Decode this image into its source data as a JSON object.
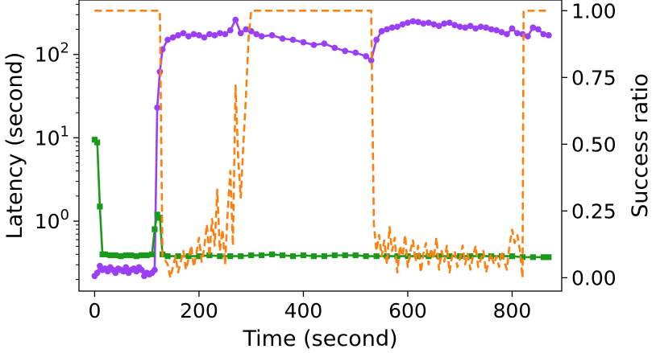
{
  "chart_data": {
    "type": "line",
    "xlabel": "Time (second)",
    "ylabel_left": "Latency (second)",
    "ylabel_right": "Success ratio",
    "xlim": [
      -30,
      895
    ],
    "ylim_left": [
      0.145,
      450
    ],
    "ylim_right": [
      -0.05,
      1.04
    ],
    "left_scale": "log",
    "x_ticks": [
      {
        "value": 0,
        "label": "0"
      },
      {
        "value": 200,
        "label": "200"
      },
      {
        "value": 400,
        "label": "400"
      },
      {
        "value": 600,
        "label": "600"
      },
      {
        "value": 800,
        "label": "800"
      }
    ],
    "left_ticks": [
      {
        "value": 1,
        "base": "10",
        "exp": "0"
      },
      {
        "value": 10,
        "base": "10",
        "exp": "1"
      },
      {
        "value": 100,
        "base": "10",
        "exp": "2"
      }
    ],
    "right_ticks": [
      {
        "value": 0.0,
        "label": "0.00"
      },
      {
        "value": 0.25,
        "label": "0.25"
      },
      {
        "value": 0.5,
        "label": "0.50"
      },
      {
        "value": 0.75,
        "label": "0.75"
      },
      {
        "value": 1.0,
        "label": "1.00"
      }
    ],
    "legend": "none",
    "grid": false,
    "series": [
      {
        "color": "#9b3ff5",
        "marker": "circle",
        "axis": "left",
        "x": [
          0,
          5,
          10,
          15,
          20,
          25,
          30,
          35,
          40,
          45,
          50,
          55,
          60,
          65,
          70,
          75,
          80,
          85,
          90,
          95,
          100,
          105,
          110,
          115,
          120,
          125,
          130,
          140,
          150,
          160,
          170,
          180,
          190,
          200,
          210,
          220,
          230,
          240,
          250,
          260,
          270,
          280,
          290,
          300,
          310,
          320,
          340,
          360,
          380,
          400,
          420,
          440,
          460,
          480,
          500,
          520,
          530,
          540,
          550,
          560,
          570,
          580,
          590,
          600,
          610,
          620,
          630,
          640,
          650,
          660,
          670,
          680,
          690,
          700,
          710,
          720,
          730,
          740,
          750,
          760,
          770,
          780,
          790,
          800,
          810,
          820,
          830,
          840,
          850,
          860,
          870
        ],
        "y": [
          0.22,
          0.24,
          0.29,
          0.26,
          0.27,
          0.25,
          0.28,
          0.26,
          0.24,
          0.27,
          0.26,
          0.25,
          0.28,
          0.24,
          0.26,
          0.27,
          0.25,
          0.28,
          0.26,
          0.22,
          0.24,
          0.23,
          0.24,
          0.26,
          23,
          62,
          115,
          150,
          160,
          170,
          180,
          165,
          175,
          170,
          160,
          175,
          170,
          180,
          175,
          195,
          260,
          180,
          200,
          190,
          175,
          165,
          170,
          155,
          150,
          140,
          130,
          135,
          120,
          110,
          105,
          95,
          85,
          150,
          190,
          200,
          210,
          215,
          230,
          240,
          250,
          245,
          235,
          240,
          230,
          220,
          235,
          240,
          225,
          215,
          210,
          220,
          205,
          215,
          210,
          200,
          195,
          185,
          175,
          205,
          180,
          175,
          165,
          210,
          200,
          175,
          170
        ]
      },
      {
        "color": "#1a9a1a",
        "marker": "square",
        "axis": "left",
        "x": [
          0,
          5,
          10,
          15,
          20,
          30,
          40,
          50,
          60,
          70,
          80,
          90,
          100,
          110,
          115,
          120,
          125,
          130,
          140,
          160,
          180,
          200,
          220,
          240,
          260,
          280,
          300,
          320,
          340,
          360,
          380,
          400,
          420,
          440,
          460,
          480,
          500,
          520,
          540,
          560,
          580,
          600,
          620,
          640,
          660,
          680,
          700,
          720,
          740,
          760,
          780,
          800,
          820,
          840,
          860,
          870
        ],
        "y": [
          9.5,
          8.8,
          1.5,
          0.4,
          0.4,
          0.39,
          0.39,
          0.38,
          0.39,
          0.39,
          0.38,
          0.39,
          0.39,
          0.4,
          0.8,
          1.2,
          1.1,
          0.4,
          0.38,
          0.38,
          0.38,
          0.38,
          0.39,
          0.38,
          0.38,
          0.38,
          0.39,
          0.39,
          0.4,
          0.39,
          0.38,
          0.39,
          0.38,
          0.38,
          0.39,
          0.39,
          0.39,
          0.38,
          0.38,
          0.38,
          0.38,
          0.38,
          0.38,
          0.38,
          0.38,
          0.38,
          0.38,
          0.38,
          0.38,
          0.38,
          0.38,
          0.38,
          0.37,
          0.37,
          0.37,
          0.37
        ]
      },
      {
        "color": "#ff7f0e",
        "style": "dashed",
        "axis": "right",
        "x": [
          0,
          125,
          130,
          140,
          145,
          150,
          155,
          160,
          165,
          170,
          175,
          180,
          185,
          190,
          195,
          200,
          205,
          210,
          215,
          220,
          225,
          230,
          235,
          240,
          245,
          250,
          255,
          260,
          265,
          270,
          275,
          280,
          285,
          290,
          295,
          300,
          305,
          530,
          535,
          540,
          545,
          550,
          555,
          560,
          565,
          570,
          575,
          580,
          585,
          590,
          595,
          600,
          605,
          610,
          615,
          620,
          625,
          630,
          635,
          640,
          645,
          650,
          655,
          660,
          665,
          670,
          675,
          680,
          685,
          690,
          695,
          700,
          705,
          710,
          715,
          720,
          725,
          730,
          735,
          740,
          745,
          750,
          755,
          760,
          765,
          770,
          775,
          780,
          785,
          790,
          795,
          800,
          805,
          810,
          815,
          820,
          822,
          825,
          870
        ],
        "y": [
          1.0,
          1.0,
          0.08,
          0.05,
          0.0,
          0.04,
          0.08,
          0.02,
          0.06,
          0.1,
          0.03,
          0.07,
          0.12,
          0.04,
          0.09,
          0.15,
          0.06,
          0.11,
          0.2,
          0.08,
          0.22,
          0.12,
          0.33,
          0.1,
          0.18,
          0.05,
          0.25,
          0.4,
          0.12,
          0.72,
          0.45,
          0.3,
          0.5,
          0.68,
          0.9,
          1.0,
          1.0,
          1.0,
          0.2,
          0.1,
          0.16,
          0.08,
          0.14,
          0.05,
          0.19,
          0.1,
          0.15,
          0.02,
          0.12,
          0.08,
          0.16,
          0.04,
          0.1,
          0.14,
          0.06,
          0.12,
          0.02,
          0.09,
          0.13,
          0.05,
          0.11,
          0.07,
          0.15,
          0.03,
          0.1,
          0.06,
          0.12,
          0.02,
          0.08,
          0.1,
          0.04,
          0.07,
          0.12,
          0.05,
          0.09,
          0.03,
          0.08,
          0.12,
          0.04,
          0.07,
          0.1,
          0.02,
          0.06,
          0.09,
          0.05,
          0.08,
          0.04,
          0.1,
          0.06,
          0.03,
          0.12,
          0.18,
          0.13,
          0.16,
          0.1,
          0.0,
          1.0,
          1.0,
          1.0
        ]
      }
    ]
  }
}
